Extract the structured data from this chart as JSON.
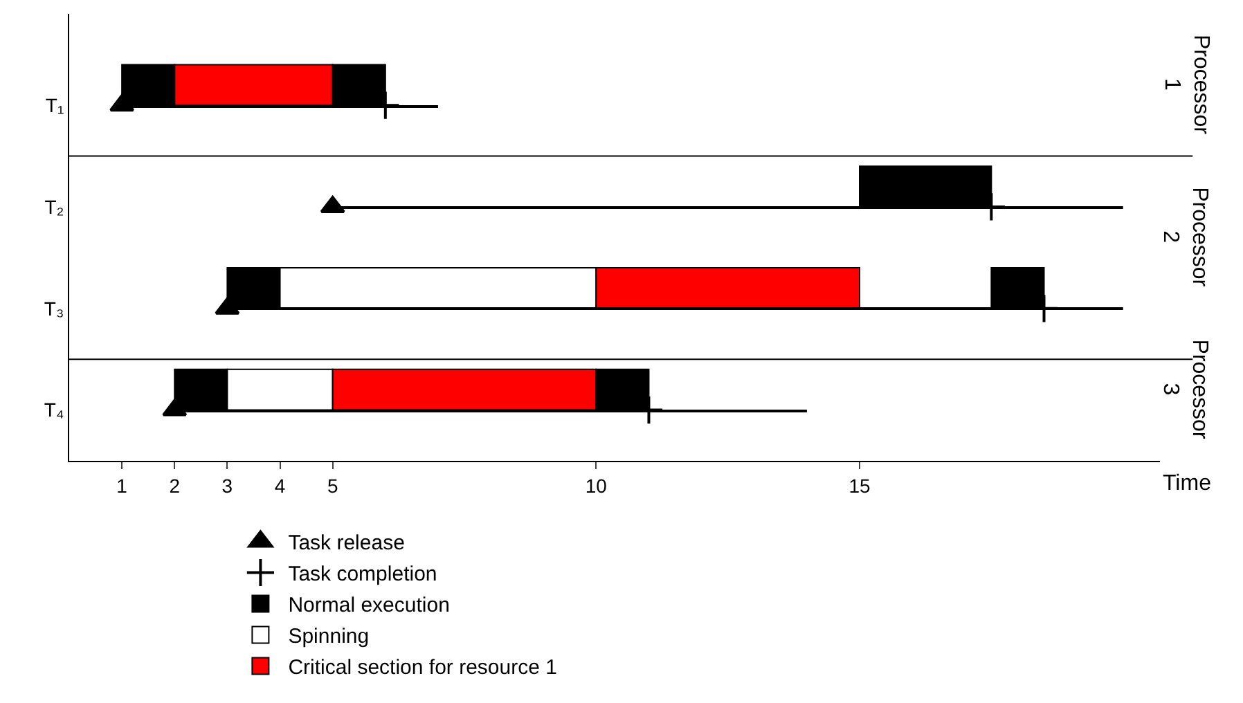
{
  "chart_data": {
    "type": "bar",
    "orientation": "horizontal",
    "xlabel": "Time",
    "categories": [
      "T₁",
      "T₂",
      "T₃",
      "T₄"
    ],
    "xlim": [
      0,
      20.7
    ],
    "xticks": [
      1,
      2,
      3,
      4,
      5,
      10,
      15
    ],
    "series": [
      {
        "name": "Normal execution",
        "color": "#000000",
        "base": [
          1,
          15,
          3,
          2
        ],
        "values": [
          1,
          2.5,
          1,
          1
        ]
      },
      {
        "name": "Spinning",
        "color": "#ffffff",
        "base": [
          null,
          null,
          4,
          3
        ],
        "values": [
          null,
          null,
          6,
          2
        ]
      },
      {
        "name": "Critical section for resource 1",
        "color": "#ff0000",
        "base": [
          2,
          null,
          10,
          5
        ],
        "values": [
          3,
          null,
          5,
          5
        ]
      },
      {
        "color": "#000000",
        "base": [
          5,
          null,
          17.5,
          10
        ],
        "values": [
          1,
          null,
          1,
          1
        ]
      },
      {
        "color": "#000000",
        "line_style": "solid",
        "base": [
          1,
          5,
          3,
          2
        ],
        "values": [
          6,
          15,
          17,
          12
        ]
      },
      {
        "type": "scatter",
        "name": "Task release",
        "color": "#000000",
        "marker": "triangle",
        "values": [
          1,
          5,
          3,
          2
        ]
      },
      {
        "type": "scatter",
        "name": "Task completion",
        "color": "#000000",
        "marker": "cross",
        "values": [
          6,
          17.5,
          18.5,
          11
        ]
      }
    ],
    "annotations": [
      "Processor 1",
      "Processor 2",
      "Processor 3"
    ],
    "legend": "bottom"
  }
}
